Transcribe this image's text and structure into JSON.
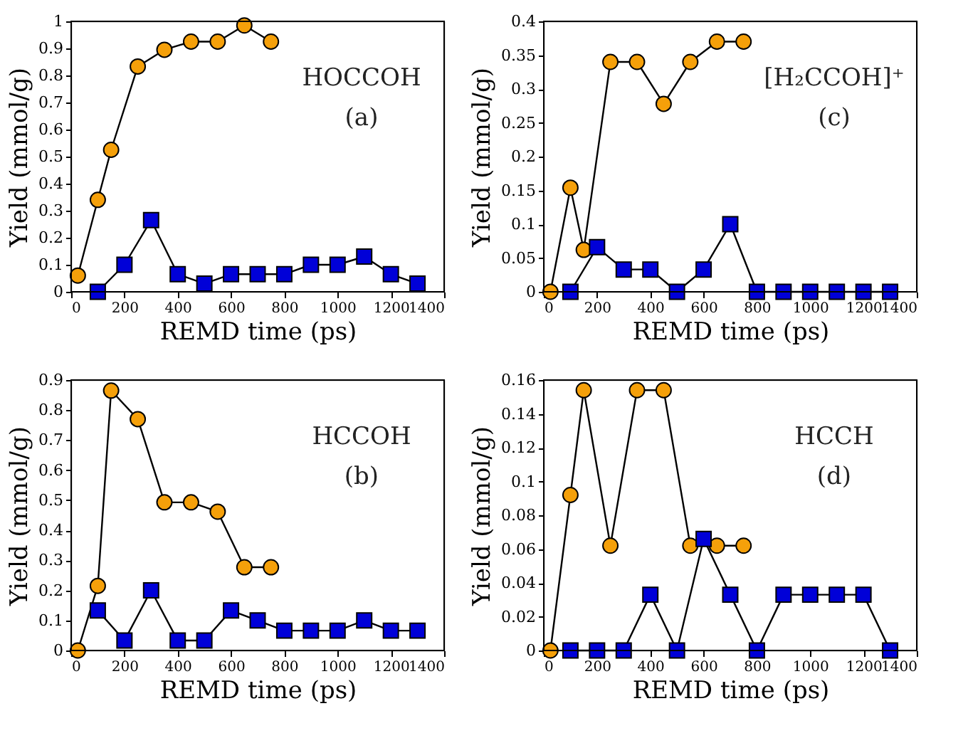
{
  "chart_data": [
    {
      "type": "line",
      "xlabel": "REMD time (ps)",
      "ylabel": "Yield (mmol/g)",
      "annotations": [
        "HOCCOH",
        "(a)"
      ],
      "xlim": [
        0,
        1400
      ],
      "xticks": [
        0,
        200,
        400,
        600,
        800,
        1000,
        1200,
        1400
      ],
      "ylim": [
        0,
        1
      ],
      "yticks": [
        0,
        0.1,
        0.2,
        0.3,
        0.4,
        0.5,
        0.6,
        0.7,
        0.8,
        0.9,
        1
      ],
      "grid": false,
      "series": [
        {
          "color": "#f5a00a",
          "marker": "circle",
          "x": [
            25,
            100,
            150,
            250,
            350,
            450,
            550,
            650,
            750
          ],
          "values": [
            0.06,
            0.34,
            0.525,
            0.833,
            0.895,
            0.925,
            0.925,
            0.985,
            0.925
          ]
        },
        {
          "color": "#0000d8",
          "marker": "square",
          "x": [
            100,
            200,
            300,
            400,
            500,
            600,
            700,
            800,
            900,
            1000,
            1100,
            1200,
            1300
          ],
          "values": [
            0,
            0.1,
            0.265,
            0.065,
            0.03,
            0.065,
            0.065,
            0.065,
            0.1,
            0.1,
            0.13,
            0.065,
            0.03
          ]
        }
      ]
    },
    {
      "type": "line",
      "xlabel": "REMD time (ps)",
      "ylabel": "Yield (mmol/g)",
      "annotations": [
        "[H₂CCOH]⁺",
        "(c)"
      ],
      "xlim": [
        0,
        1400
      ],
      "xticks": [
        0,
        200,
        400,
        600,
        800,
        1000,
        1200,
        1400
      ],
      "ylim": [
        0,
        0.4
      ],
      "yticks": [
        0,
        0.05,
        0.1,
        0.15,
        0.2,
        0.25,
        0.3,
        0.35,
        0.4
      ],
      "grid": false,
      "series": [
        {
          "color": "#f5a00a",
          "marker": "circle",
          "x": [
            25,
            100,
            150,
            250,
            350,
            450,
            550,
            650,
            750
          ],
          "values": [
            0,
            0.154,
            0.062,
            0.34,
            0.34,
            0.278,
            0.34,
            0.37,
            0.37
          ]
        },
        {
          "color": "#0000d8",
          "marker": "square",
          "x": [
            100,
            200,
            300,
            400,
            500,
            600,
            700,
            800,
            900,
            1000,
            1100,
            1200,
            1300
          ],
          "values": [
            0,
            0.066,
            0.033,
            0.033,
            0,
            0.033,
            0.1,
            0,
            0,
            0,
            0,
            0,
            0
          ]
        }
      ]
    },
    {
      "type": "line",
      "xlabel": "REMD time (ps)",
      "ylabel": "Yield (mmol/g)",
      "annotations": [
        "HCCOH",
        "(b)"
      ],
      "xlim": [
        0,
        1400
      ],
      "xticks": [
        0,
        200,
        400,
        600,
        800,
        1000,
        1200,
        1400
      ],
      "ylim": [
        0,
        0.9
      ],
      "yticks": [
        0,
        0.1,
        0.2,
        0.3,
        0.4,
        0.5,
        0.6,
        0.7,
        0.8,
        0.9
      ],
      "grid": false,
      "series": [
        {
          "color": "#f5a00a",
          "marker": "circle",
          "x": [
            25,
            100,
            150,
            250,
            350,
            450,
            550,
            650,
            750
          ],
          "values": [
            0,
            0.215,
            0.865,
            0.77,
            0.493,
            0.493,
            0.462,
            0.277,
            0.277
          ]
        },
        {
          "color": "#0000d8",
          "marker": "square",
          "x": [
            100,
            200,
            300,
            400,
            500,
            600,
            700,
            800,
            900,
            1000,
            1100,
            1200,
            1300
          ],
          "values": [
            0.133,
            0.033,
            0.2,
            0.033,
            0.033,
            0.133,
            0.1,
            0.066,
            0.066,
            0.066,
            0.1,
            0.066,
            0.066
          ]
        }
      ]
    },
    {
      "type": "line",
      "xlabel": "REMD time (ps)",
      "ylabel": "Yield (mmol/g)",
      "annotations": [
        "HCCH",
        "(d)"
      ],
      "xlim": [
        0,
        1400
      ],
      "xticks": [
        0,
        200,
        400,
        600,
        800,
        1000,
        1200,
        1400
      ],
      "ylim": [
        0,
        0.16
      ],
      "yticks": [
        0,
        0.02,
        0.04,
        0.06,
        0.08,
        0.1,
        0.12,
        0.14,
        0.16
      ],
      "grid": false,
      "series": [
        {
          "color": "#f5a00a",
          "marker": "circle",
          "x": [
            25,
            100,
            150,
            250,
            350,
            450,
            550,
            650,
            750
          ],
          "values": [
            0,
            0.092,
            0.154,
            0.062,
            0.154,
            0.154,
            0.062,
            0.062,
            0.062
          ]
        },
        {
          "color": "#0000d8",
          "marker": "square",
          "x": [
            100,
            200,
            300,
            400,
            500,
            600,
            700,
            800,
            900,
            1000,
            1100,
            1200,
            1300
          ],
          "values": [
            0,
            0,
            0,
            0.033,
            0,
            0.066,
            0.033,
            0,
            0.033,
            0.033,
            0.033,
            0.033,
            0
          ]
        }
      ]
    }
  ]
}
